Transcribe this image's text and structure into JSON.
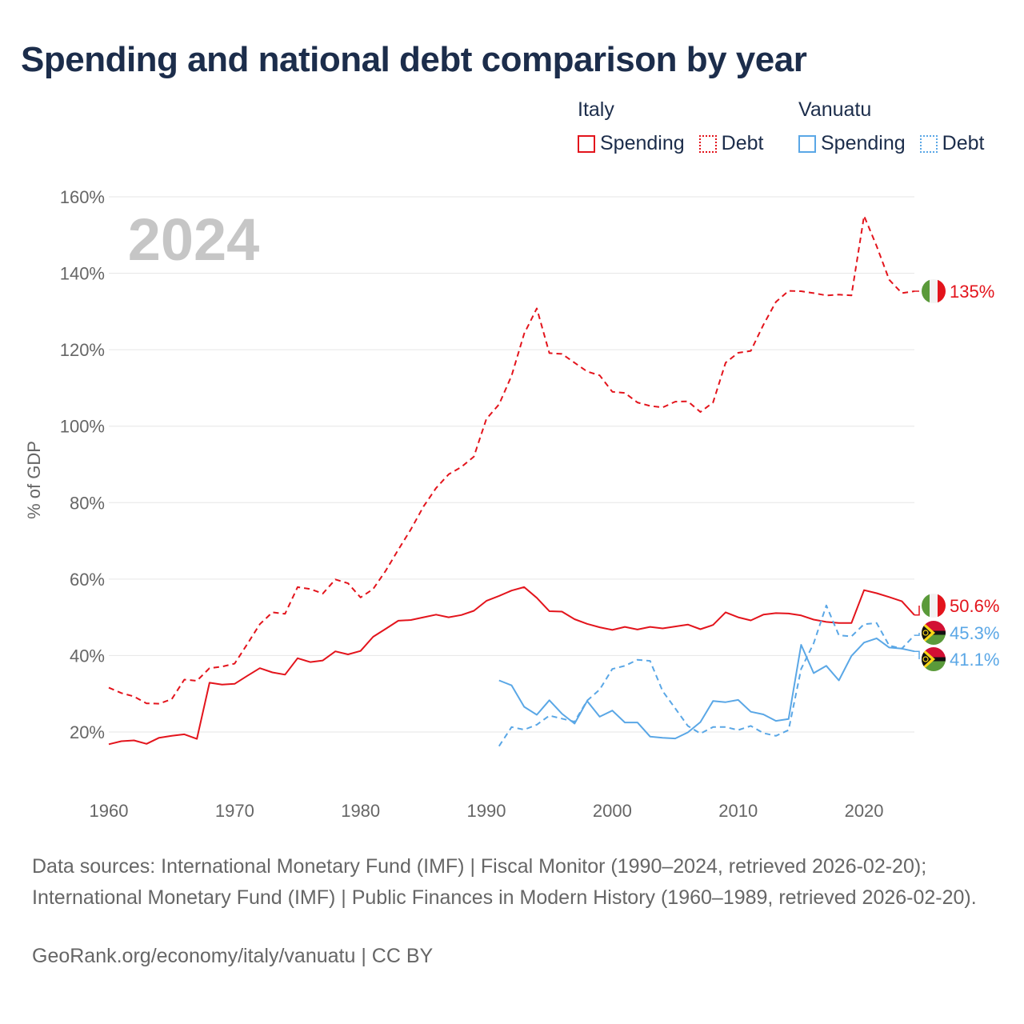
{
  "title": "Spending and national debt comparison by year",
  "legend": {
    "italy": {
      "name": "Italy",
      "spending": "Spending",
      "debt": "Debt"
    },
    "vanuatu": {
      "name": "Vanuatu",
      "spending": "Spending",
      "debt": "Debt"
    }
  },
  "colors": {
    "italy": "#e3141c",
    "vanuatu": "#5aa7e6",
    "title": "#1c2d4b",
    "year": "#c6c6c6"
  },
  "chart_data": {
    "type": "line",
    "year_label": "2024",
    "ylabel": "% of GDP",
    "xlim": [
      1960,
      2024
    ],
    "ylim": [
      8,
      165
    ],
    "x_ticks": [
      1960,
      1970,
      1980,
      1990,
      2000,
      2010,
      2020
    ],
    "y_ticks": [
      {
        "value": 20,
        "label": "20%"
      },
      {
        "value": 40,
        "label": "40%"
      },
      {
        "value": 60,
        "label": "60%"
      },
      {
        "value": 80,
        "label": "80%"
      },
      {
        "value": 100,
        "label": "100%"
      },
      {
        "value": 120,
        "label": "120%"
      },
      {
        "value": 140,
        "label": "140%"
      },
      {
        "value": 160,
        "label": "160%"
      }
    ],
    "series": [
      {
        "name": "Italy Spending",
        "country": "italy",
        "style": "solid",
        "start_year": 1960,
        "values": [
          16.8,
          17.6,
          17.8,
          16.9,
          18.5,
          19.0,
          19.4,
          18.2,
          32.9,
          32.4,
          32.6,
          34.7,
          36.7,
          35.6,
          35.0,
          39.3,
          38.3,
          38.7,
          41.1,
          40.3,
          41.2,
          44.9,
          47.0,
          49.1,
          49.3,
          50.0,
          50.7,
          50.0,
          50.6,
          51.7,
          54.3,
          55.6,
          57.0,
          57.9,
          55.1,
          51.6,
          51.5,
          49.5,
          48.3,
          47.4,
          46.7,
          47.5,
          46.8,
          47.5,
          47.1,
          47.6,
          48.1,
          46.9,
          48.0,
          51.3,
          50.0,
          49.2,
          50.7,
          51.1,
          51.0,
          50.5,
          49.4,
          48.8,
          48.5,
          48.5,
          57.1,
          56.3,
          55.3,
          54.2,
          50.6
        ],
        "end_label": "50.6%"
      },
      {
        "name": "Italy Debt",
        "country": "italy",
        "style": "dashed",
        "start_year": 1960,
        "values": [
          31.6,
          30.2,
          29.3,
          27.5,
          27.4,
          28.6,
          33.7,
          33.4,
          36.7,
          37.1,
          37.9,
          43.0,
          48.2,
          51.3,
          50.9,
          57.9,
          57.4,
          56.2,
          59.9,
          58.9,
          55.2,
          57.4,
          62.2,
          67.7,
          73.0,
          79.0,
          83.8,
          87.4,
          89.3,
          92.0,
          101.9,
          105.7,
          113.2,
          124.2,
          130.8,
          119.1,
          118.9,
          116.6,
          114.3,
          113.3,
          109.0,
          108.7,
          106.2,
          105.3,
          104.9,
          106.4,
          106.5,
          103.7,
          106.2,
          116.6,
          119.2,
          119.7,
          126.5,
          132.5,
          135.4,
          135.3,
          134.8,
          134.2,
          134.4,
          134.2,
          155.0,
          147.1,
          138.3,
          134.8,
          135.3
        ],
        "end_label": "135%"
      },
      {
        "name": "Vanuatu Spending",
        "country": "vanuatu",
        "style": "solid",
        "start_year": 1991,
        "values": [
          33.5,
          32.2,
          26.6,
          24.5,
          28.3,
          24.8,
          22.2,
          28.1,
          24.0,
          25.6,
          22.5,
          22.5,
          18.8,
          18.5,
          18.3,
          19.9,
          22.6,
          28.1,
          27.8,
          28.4,
          25.3,
          24.6,
          22.9,
          23.4,
          42.8,
          35.4,
          37.3,
          33.5,
          39.9,
          43.4,
          44.5,
          42.1,
          41.8,
          41.1
        ],
        "end_label": "41.1%"
      },
      {
        "name": "Vanuatu Debt",
        "country": "vanuatu",
        "style": "dashed",
        "start_year": 1991,
        "values": [
          16.3,
          21.3,
          20.6,
          21.9,
          24.3,
          23.5,
          22.7,
          28.2,
          31.1,
          36.5,
          37.3,
          38.9,
          38.6,
          30.7,
          26.2,
          21.6,
          19.6,
          21.3,
          21.3,
          20.5,
          21.6,
          19.7,
          19.0,
          20.5,
          36.5,
          43.2,
          53.1,
          45.3,
          45.0,
          48.2,
          48.5,
          42.6,
          41.8,
          45.3
        ],
        "end_label": "45.3%"
      }
    ]
  },
  "sources": "Data sources: International Monetary Fund (IMF) | Fiscal Monitor (1990–2024, retrieved 2026-02-20); International Monetary Fund (IMF) | Public Finances in Modern History (1960–1989, retrieved 2026-02-20).",
  "credit": "GeoRank.org/economy/italy/vanuatu | CC BY"
}
